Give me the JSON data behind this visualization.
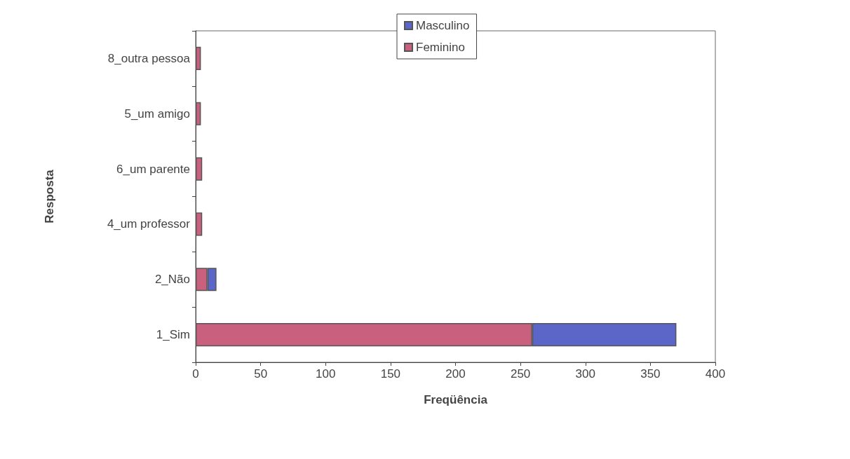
{
  "chart_data": {
    "type": "bar",
    "orientation": "horizontal",
    "stacked": true,
    "xlabel": "Freqüência",
    "ylabel": "Resposta",
    "categories": [
      "8_outra pessoa",
      "5_um amigo",
      "6_um parente",
      "4_um professor",
      "2_Não",
      "1_Sim"
    ],
    "series": [
      {
        "name": "Feminino",
        "color": "#c8607e",
        "values": [
          4,
          4,
          5,
          5,
          9,
          259
        ]
      },
      {
        "name": "Masculino",
        "color": "#5b66c8",
        "values": [
          0,
          0,
          0,
          0,
          7,
          111
        ]
      }
    ],
    "xlim": [
      0,
      400
    ],
    "xticks": [
      0,
      50,
      100,
      150,
      200,
      250,
      300,
      350,
      400
    ],
    "grid": false,
    "legend": "top"
  }
}
